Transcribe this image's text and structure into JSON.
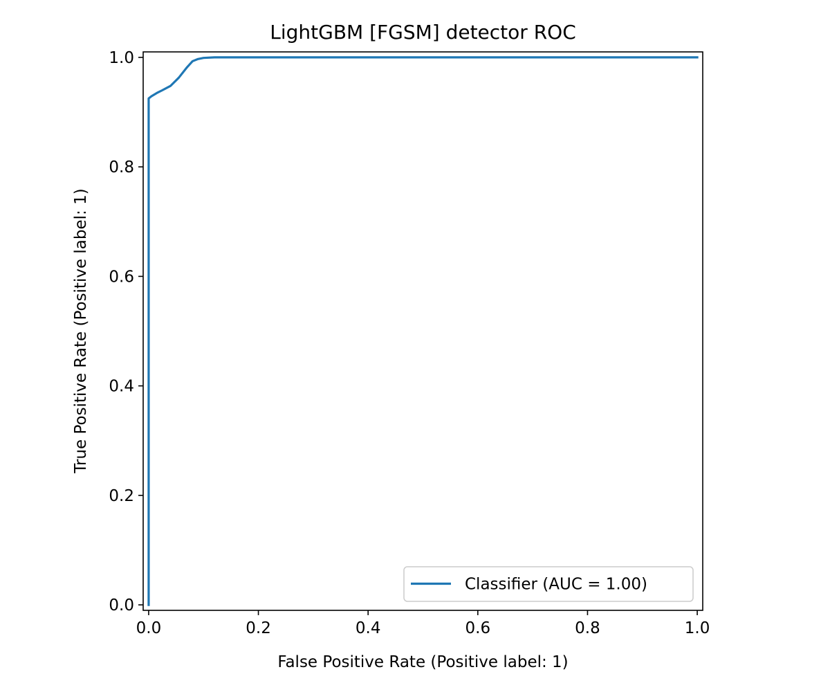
{
  "chart_data": {
    "type": "line",
    "title": "LightGBM [FGSM] detector ROC",
    "xlabel": "False Positive Rate (Positive label: 1)",
    "ylabel": "True Positive Rate (Positive label: 1)",
    "xlim": [
      -0.01,
      1.01
    ],
    "ylim": [
      -0.01,
      1.01
    ],
    "x_ticks": [
      0.0,
      0.2,
      0.4,
      0.6,
      0.8,
      1.0
    ],
    "x_tick_labels": [
      "0.0",
      "0.2",
      "0.4",
      "0.6",
      "0.8",
      "1.0"
    ],
    "y_ticks": [
      0.0,
      0.2,
      0.4,
      0.6,
      0.8,
      1.0
    ],
    "y_tick_labels": [
      "0.0",
      "0.2",
      "0.4",
      "0.6",
      "0.8",
      "1.0"
    ],
    "grid": false,
    "legend_position": "lower-right",
    "series": [
      {
        "name": "Classifier (AUC = 1.00)",
        "color": "#1f77b4",
        "x": [
          0.0,
          0.0,
          0.005,
          0.015,
          0.025,
          0.04,
          0.055,
          0.07,
          0.08,
          0.09,
          0.1,
          0.12,
          0.15,
          0.2,
          0.3,
          0.5,
          0.7,
          1.0
        ],
        "y": [
          0.0,
          0.925,
          0.929,
          0.935,
          0.94,
          0.948,
          0.963,
          0.982,
          0.993,
          0.997,
          0.999,
          1.0,
          1.0,
          1.0,
          1.0,
          1.0,
          1.0,
          1.0
        ]
      }
    ]
  }
}
